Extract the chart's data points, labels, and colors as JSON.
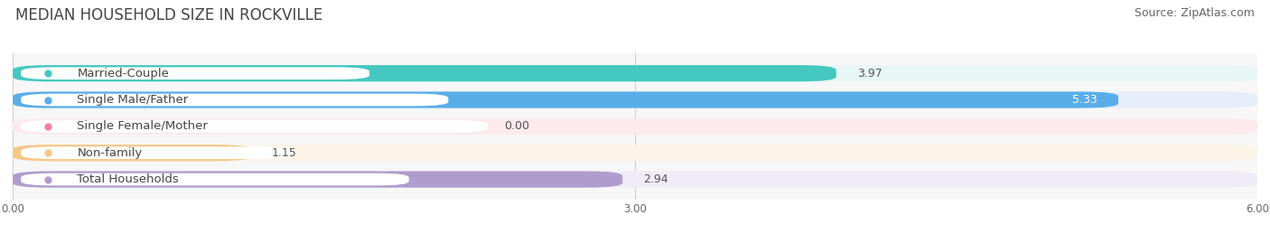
{
  "title": "MEDIAN HOUSEHOLD SIZE IN ROCKVILLE",
  "source": "Source: ZipAtlas.com",
  "categories": [
    "Married-Couple",
    "Single Male/Father",
    "Single Female/Mother",
    "Non-family",
    "Total Households"
  ],
  "values": [
    3.97,
    5.33,
    0.0,
    1.15,
    2.94
  ],
  "bar_colors": [
    "#45c8c0",
    "#5aaee8",
    "#f080a0",
    "#f5c888",
    "#b09ccc"
  ],
  "bg_colors": [
    "#e8f6f6",
    "#e5eef8",
    "#fceaee",
    "#fdf4e8",
    "#f0ecf7"
  ],
  "label_dot_colors": [
    "#45c8c0",
    "#5aaee8",
    "#f080a0",
    "#f5c888",
    "#b09ccc"
  ],
  "xlim": [
    0,
    6.0
  ],
  "xticks": [
    0.0,
    3.0,
    6.0
  ],
  "xtick_labels": [
    "0.00",
    "3.00",
    "6.00"
  ],
  "title_fontsize": 12,
  "source_fontsize": 9,
  "label_fontsize": 9.5,
  "value_fontsize": 9,
  "bar_height": 0.62,
  "figure_bg": "#ffffff",
  "plot_bg": "#f7f7f7"
}
